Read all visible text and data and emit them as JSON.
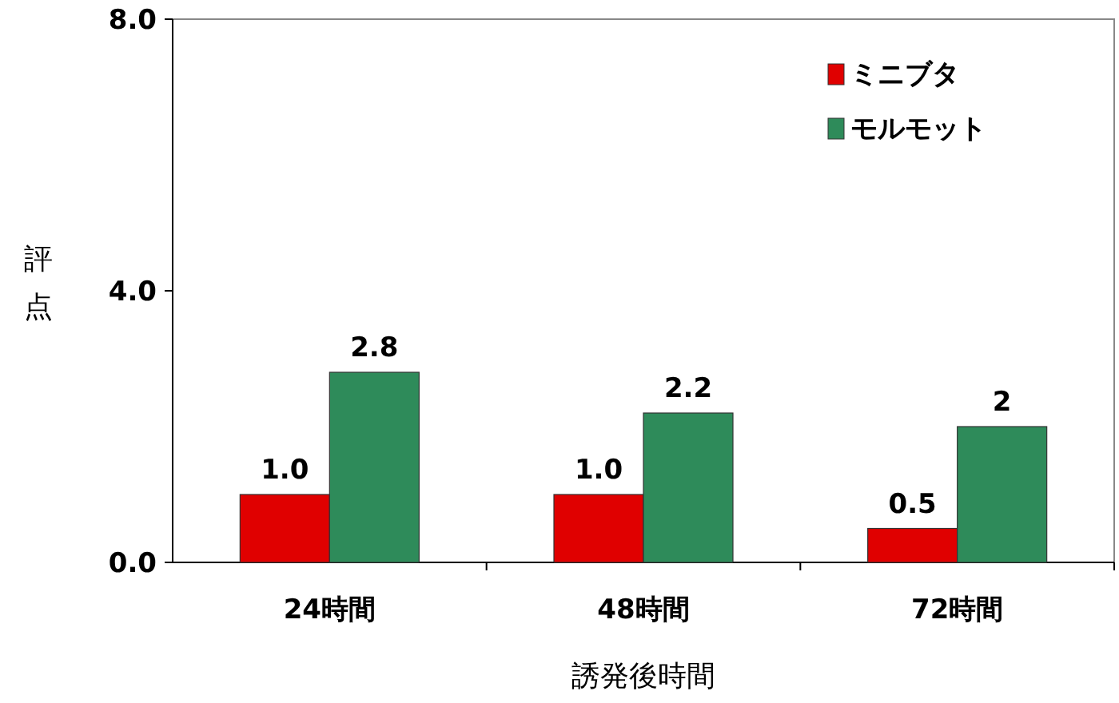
{
  "chart_data": {
    "type": "bar",
    "xlabel": "誘発後時間",
    "ylabel": "評点",
    "categories": [
      "24時間",
      "48時間",
      "72時間"
    ],
    "series": [
      {
        "name": "ミニブタ",
        "color": "#e00000",
        "values": [
          1.0,
          1.0,
          0.5
        ],
        "value_labels": [
          "1.0",
          "1.0",
          "0.5"
        ]
      },
      {
        "name": "モルモット",
        "color": "#2e8b5a",
        "values": [
          2.8,
          2.2,
          2
        ],
        "value_labels": [
          "2.8",
          "2.2",
          "2"
        ]
      }
    ],
    "ylim": [
      0,
      8
    ],
    "yticks": [
      {
        "value": 0,
        "label": "0.0"
      },
      {
        "value": 4,
        "label": "4.0"
      },
      {
        "value": 8,
        "label": "8.0"
      }
    ],
    "legend": "top right",
    "grid": false
  }
}
